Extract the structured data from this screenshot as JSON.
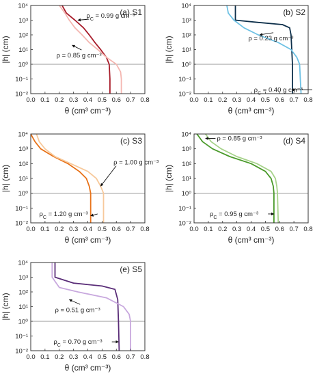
{
  "chart_data": [
    {
      "type": "line",
      "panel_label": "(a) S1",
      "xlabel": "θ (cm³ cm⁻³)",
      "ylabel": "|h| (cm)",
      "xlim": [
        0.0,
        0.8
      ],
      "ylim": [
        0.01,
        10000
      ],
      "yscale": "log",
      "x_ticks": [
        "0.0",
        "0.1",
        "0.2",
        "0.3",
        "0.4",
        "0.5",
        "0.6",
        "0.7",
        "0.8"
      ],
      "y_ticks": [
        "10⁻²",
        "10⁻¹",
        "10⁰",
        "10¹",
        "10²",
        "10³",
        "10⁴"
      ],
      "reference_line_y": 1,
      "series": [
        {
          "color": "#a81c2a",
          "points": [
            [
              0.22,
              10000
            ],
            [
              0.25,
              3000
            ],
            [
              0.31,
              1000
            ],
            [
              0.37,
              300
            ],
            [
              0.41,
              100
            ],
            [
              0.45,
              30
            ],
            [
              0.49,
              10
            ],
            [
              0.53,
              3
            ],
            [
              0.55,
              1
            ],
            [
              0.555,
              0.1
            ],
            [
              0.555,
              0.01
            ]
          ]
        },
        {
          "color": "#f4b6b0",
          "points": [
            [
              0.2,
              10000
            ],
            [
              0.24,
              3000
            ],
            [
              0.27,
              1000
            ],
            [
              0.31,
              300
            ],
            [
              0.36,
              100
            ],
            [
              0.41,
              30
            ],
            [
              0.47,
              10
            ],
            [
              0.53,
              3
            ],
            [
              0.6,
              1
            ],
            [
              0.63,
              0.3
            ],
            [
              0.635,
              0.1
            ],
            [
              0.635,
              0.01
            ]
          ]
        }
      ],
      "annotations": [
        {
          "text": "ρ_C = 0.99 g cm⁻³",
          "at": [
            0.39,
            2000
          ],
          "arrow_to": [
            0.33,
            1000
          ]
        },
        {
          "text": "ρ = 0.85 g cm⁻³",
          "at": [
            0.18,
            4
          ],
          "arrow_to": [
            0.29,
            20
          ]
        }
      ]
    },
    {
      "type": "line",
      "panel_label": "(b) S2",
      "xlabel": "θ (cm³ cm⁻³)",
      "ylabel": "|h| (cm)",
      "xlim": [
        0.0,
        0.8
      ],
      "ylim": [
        0.01,
        10000
      ],
      "yscale": "log",
      "x_ticks": [
        "0.0",
        "0.1",
        "0.2",
        "0.3",
        "0.4",
        "0.5",
        "0.6",
        "0.7",
        "0.8"
      ],
      "y_ticks": [
        "10⁻²",
        "10⁻¹",
        "10⁰",
        "10¹",
        "10²",
        "10³",
        "10⁴"
      ],
      "reference_line_y": 1,
      "series": [
        {
          "color": "#0d2f4a",
          "points": [
            [
              0.29,
              10000
            ],
            [
              0.29,
              3000
            ],
            [
              0.29,
              1000
            ],
            [
              0.45,
              700
            ],
            [
              0.62,
              500
            ],
            [
              0.67,
              300
            ],
            [
              0.68,
              100
            ],
            [
              0.685,
              10
            ],
            [
              0.69,
              1
            ],
            [
              0.69,
              0.01
            ]
          ]
        },
        {
          "color": "#6ec1e4",
          "points": [
            [
              0.23,
              10000
            ],
            [
              0.24,
              3000
            ],
            [
              0.28,
              1000
            ],
            [
              0.35,
              300
            ],
            [
              0.45,
              100
            ],
            [
              0.59,
              30
            ],
            [
              0.68,
              10
            ],
            [
              0.72,
              3
            ],
            [
              0.74,
              1
            ],
            [
              0.745,
              0.1
            ],
            [
              0.75,
              0.01
            ]
          ]
        }
      ],
      "annotations": [
        {
          "text": "ρ = 0.23 g cm⁻³",
          "at": [
            0.38,
            60
          ],
          "arrow_to": [
            0.46,
            100
          ]
        },
        {
          "text": "ρ_C = 0.40 g cm⁻³",
          "at": [
            0.42,
            0.018
          ],
          "arrow_to": [
            0.685,
            0.018
          ]
        }
      ]
    },
    {
      "type": "line",
      "panel_label": "(c) S3",
      "xlabel": "θ (cm³ cm⁻³)",
      "ylabel": "|h| (cm)",
      "xlim": [
        0.0,
        0.8
      ],
      "ylim": [
        0.01,
        10000
      ],
      "yscale": "log",
      "x_ticks": [
        "0.0",
        "0.1",
        "0.2",
        "0.3",
        "0.4",
        "0.5",
        "0.6",
        "0.7",
        "0.8"
      ],
      "y_ticks": [
        "10⁻²",
        "10⁻¹",
        "10⁰",
        "10¹",
        "10²",
        "10³",
        "10⁴"
      ],
      "reference_line_y": 1,
      "series": [
        {
          "color": "#e8731a",
          "points": [
            [
              0.0,
              10000
            ],
            [
              0.03,
              3000
            ],
            [
              0.07,
              1000
            ],
            [
              0.16,
              300
            ],
            [
              0.26,
              100
            ],
            [
              0.34,
              30
            ],
            [
              0.39,
              10
            ],
            [
              0.41,
              3
            ],
            [
              0.42,
              1
            ],
            [
              0.42,
              0.1
            ],
            [
              0.42,
              0.01
            ]
          ]
        },
        {
          "color": "#f7c99b",
          "points": [
            [
              0.04,
              10000
            ],
            [
              0.06,
              3000
            ],
            [
              0.1,
              1000
            ],
            [
              0.17,
              300
            ],
            [
              0.28,
              100
            ],
            [
              0.4,
              30
            ],
            [
              0.46,
              10
            ],
            [
              0.49,
              3
            ],
            [
              0.51,
              1
            ],
            [
              0.51,
              0.1
            ],
            [
              0.51,
              0.01
            ]
          ]
        }
      ],
      "annotations": [
        {
          "text": "ρ = 1.00 g cm⁻³",
          "at": [
            0.58,
            120
          ],
          "arrow_to": [
            0.49,
            3
          ]
        },
        {
          "text": "ρ_C = 1.20 g cm⁻³",
          "at": [
            0.06,
            0.04
          ],
          "arrow_to": [
            0.42,
            0.03
          ]
        }
      ]
    },
    {
      "type": "line",
      "panel_label": "(d) S4",
      "xlabel": "θ (cm³ cm⁻³)",
      "ylabel": "|h| (cm)",
      "xlim": [
        0.0,
        0.8
      ],
      "ylim": [
        0.01,
        10000
      ],
      "yscale": "log",
      "x_ticks": [
        "0.0",
        "0.1",
        "0.2",
        "0.3",
        "0.4",
        "0.5",
        "0.6",
        "0.7",
        "0.8"
      ],
      "y_ticks": [
        "10⁻²",
        "10⁻¹",
        "10⁰",
        "10¹",
        "10²",
        "10³",
        "10⁴"
      ],
      "reference_line_y": 1,
      "series": [
        {
          "color": "#4a9a2a",
          "points": [
            [
              0.02,
              10000
            ],
            [
              0.06,
              3000
            ],
            [
              0.13,
              1000
            ],
            [
              0.25,
              300
            ],
            [
              0.4,
              100
            ],
            [
              0.5,
              30
            ],
            [
              0.54,
              10
            ],
            [
              0.555,
              3
            ],
            [
              0.56,
              1
            ],
            [
              0.56,
              0.01
            ]
          ]
        },
        {
          "color": "#a6d28a",
          "points": [
            [
              0.08,
              10000
            ],
            [
              0.12,
              3000
            ],
            [
              0.19,
              1000
            ],
            [
              0.3,
              300
            ],
            [
              0.44,
              100
            ],
            [
              0.54,
              30
            ],
            [
              0.57,
              10
            ],
            [
              0.58,
              3
            ],
            [
              0.585,
              1
            ],
            [
              0.59,
              0.01
            ]
          ]
        }
      ],
      "annotations": [
        {
          "text": "ρ = 0.85 g cm⁻³",
          "at": [
            0.16,
            5000
          ],
          "arrow_to": [
            0.08,
            5000
          ]
        },
        {
          "text": "ρ_C = 0.95 g cm⁻³",
          "at": [
            0.11,
            0.04
          ],
          "arrow_to": [
            0.56,
            0.04
          ]
        }
      ]
    },
    {
      "type": "line",
      "panel_label": "(e) S5",
      "xlabel": "θ (cm³ cm⁻³)",
      "ylabel": "|h| (cm)",
      "xlim": [
        0.0,
        0.8
      ],
      "ylim": [
        0.01,
        10000
      ],
      "yscale": "log",
      "x_ticks": [
        "0.0",
        "0.1",
        "0.2",
        "0.3",
        "0.4",
        "0.5",
        "0.6",
        "0.7",
        "0.8"
      ],
      "y_ticks": [
        "10⁻²",
        "10⁻¹",
        "10⁰",
        "10¹",
        "10²",
        "10³",
        "10⁴"
      ],
      "reference_line_y": 1,
      "series": [
        {
          "color": "#5a2d78",
          "points": [
            [
              0.17,
              10000
            ],
            [
              0.17,
              3000
            ],
            [
              0.17,
              1000
            ],
            [
              0.3,
              400
            ],
            [
              0.5,
              250
            ],
            [
              0.59,
              150
            ],
            [
              0.61,
              30
            ],
            [
              0.615,
              1
            ],
            [
              0.62,
              0.01
            ]
          ]
        },
        {
          "color": "#c8a8de",
          "points": [
            [
              0.15,
              10000
            ],
            [
              0.15,
              1000
            ],
            [
              0.2,
              200
            ],
            [
              0.33,
              100
            ],
            [
              0.53,
              40
            ],
            [
              0.65,
              10
            ],
            [
              0.69,
              3
            ],
            [
              0.7,
              1
            ],
            [
              0.7,
              0.01
            ]
          ]
        }
      ],
      "annotations": [
        {
          "text": "ρ = 0.51 g cm⁻³",
          "at": [
            0.17,
            6
          ],
          "arrow_to": [
            0.27,
            30
          ]
        },
        {
          "text": "ρ_C = 0.70 g cm⁻³",
          "at": [
            0.16,
            0.04
          ],
          "arrow_to": [
            0.615,
            0.04
          ]
        }
      ]
    }
  ]
}
